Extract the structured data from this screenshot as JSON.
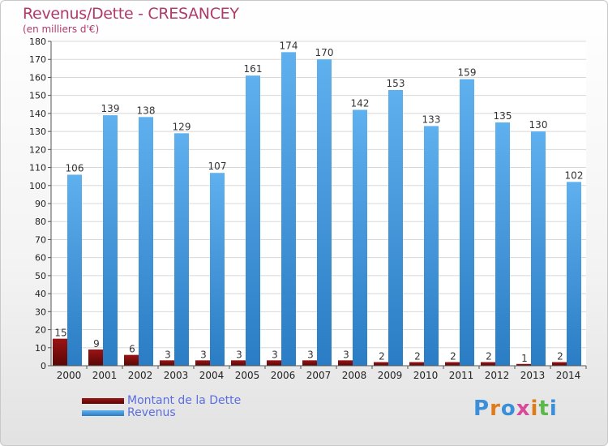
{
  "chart_data": {
    "type": "bar",
    "title": "Revenus/Dette - CRESANCEY",
    "subtitle": "(en milliers d'€)",
    "categories": [
      "2000",
      "2001",
      "2002",
      "2003",
      "2004",
      "2005",
      "2006",
      "2007",
      "2008",
      "2009",
      "2010",
      "2011",
      "2012",
      "2013",
      "2014"
    ],
    "series": [
      {
        "name": "Montant de la Dette",
        "color": "#7a0a0a",
        "values": [
          15,
          9,
          6,
          3,
          3,
          3,
          3,
          3,
          3,
          2,
          2,
          2,
          2,
          1,
          2
        ]
      },
      {
        "name": "Revenus",
        "color": "#3a8fd8",
        "values": [
          106,
          139,
          138,
          129,
          107,
          161,
          174,
          170,
          142,
          153,
          133,
          159,
          135,
          130,
          102
        ]
      }
    ],
    "ylim": [
      0,
      180
    ],
    "yticks": [
      0,
      10,
      20,
      30,
      40,
      50,
      60,
      70,
      80,
      90,
      100,
      110,
      120,
      130,
      140,
      150,
      160,
      170,
      180
    ],
    "grid": true,
    "legend_position": "bottom-left"
  },
  "legend": {
    "debt_label": "Montant de la Dette",
    "revenue_label": "Revenus"
  },
  "branding": {
    "logo_text": "Proxiti"
  }
}
